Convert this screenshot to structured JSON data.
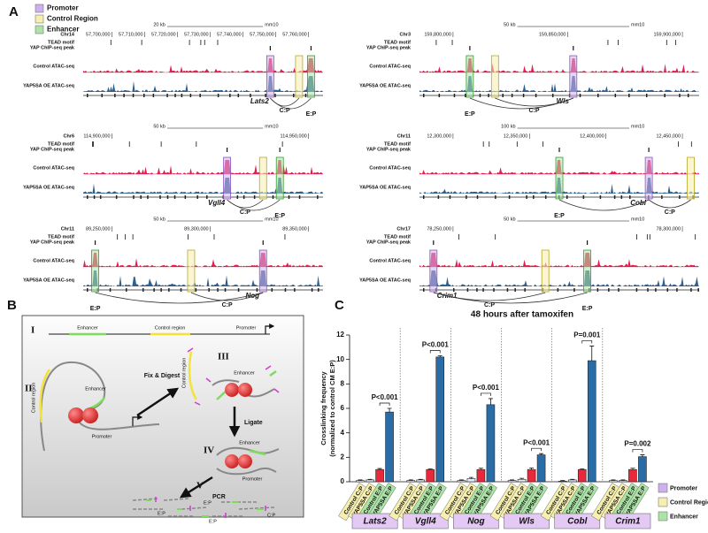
{
  "panel_a": {
    "label": "A",
    "legend": [
      {
        "name": "Promoter",
        "color": "#cfb0ee"
      },
      {
        "name": "Control Region",
        "color": "#f6efb0"
      },
      {
        "name": "Enhancer",
        "color": "#ace3a6"
      }
    ],
    "row_labels": [
      "TEAD motif",
      "YAP ChIP-seq peak",
      "Control ATAC-seq",
      "YAP5SA OE ATAC-seq"
    ],
    "tracks": [
      {
        "chrom": "Chr14",
        "scale": "20 kb",
        "assembly": "mm10",
        "coords": [
          "57,700,000",
          "57,710,000",
          "57,720,000",
          "57,730,000",
          "57,740,000",
          "57,750,000",
          "57,760,000"
        ],
        "gene": "Lats2",
        "loops": [
          "C:P",
          "E:P"
        ]
      },
      {
        "chrom": "Chr3",
        "scale": "50 kb",
        "assembly": "mm10",
        "coords": [
          "159,800,000",
          "159,850,000",
          "159,900,000"
        ],
        "gene": "Wls",
        "loops": [
          "C:P",
          "E:P"
        ]
      },
      {
        "chrom": "Chr6",
        "scale": "50 kb",
        "assembly": "mm10",
        "coords": [
          "114,900,000",
          "114,950,000"
        ],
        "gene": "Vgll4",
        "loops": [
          "C:P",
          "E:P"
        ]
      },
      {
        "chrom": "Chr11",
        "scale": "100 kb",
        "assembly": "mm10",
        "coords": [
          "12,300,000",
          "12,350,000",
          "12,400,000",
          "12,450,000"
        ],
        "gene": "Cobl",
        "loops": [
          "C:P",
          "E:P"
        ]
      },
      {
        "chrom": "Chr11",
        "scale": "50 kb",
        "assembly": "mm10",
        "coords": [
          "89,250,000",
          "89,300,000",
          "89,350,000"
        ],
        "gene": "Nog",
        "loops": [
          "C:P",
          "E:P"
        ]
      },
      {
        "chrom": "Chr17",
        "scale": "50 kb",
        "assembly": "mm10",
        "coords": [
          "78,250,000",
          "78,300,000"
        ],
        "gene": "Crim1",
        "loops": [
          "C:P",
          "E:P"
        ]
      }
    ]
  },
  "panel_b": {
    "label": "B",
    "steps": [
      "I",
      "II",
      "III",
      "IV",
      "V"
    ],
    "actions": [
      "Fix & Digest",
      "Ligate",
      "PCR"
    ],
    "i_labels": [
      "Enhancer",
      "Control region",
      "Promoter"
    ],
    "ii_labels": [
      "Enhancer",
      "Control region",
      "Promoter"
    ],
    "iii_labels": [
      "Enhancer",
      "Control region"
    ],
    "iv_labels": [
      "Enhancer",
      "Promoter"
    ],
    "v_labels": [
      "E:P",
      "E:P",
      "E:P",
      "C:P"
    ]
  },
  "chart_data": {
    "type": "bar",
    "label": "C",
    "title": "48 hours after tamoxifen",
    "y_label": [
      "Crosslinking frequency",
      "(normalized to control CM E:P)"
    ],
    "categories": [
      "Lats2",
      "Vgll4",
      "Nog",
      "Wls",
      "Cobl",
      "Crim1"
    ],
    "category_color": "#e3c9f4",
    "series": [
      {
        "name": "Control C:P",
        "color": "#ffffff",
        "label_color": "#f6efb0",
        "values": [
          0.1,
          0.1,
          0.1,
          0.1,
          0.05,
          0.1
        ],
        "errors": [
          0.05,
          0.05,
          0.05,
          0.05,
          0.05,
          0.05
        ]
      },
      {
        "name": "YAP5SA C:P",
        "color": "#e4edf7",
        "label_color": "#f6efb0",
        "values": [
          0.15,
          0.15,
          0.25,
          0.2,
          0.15,
          0.1
        ],
        "errors": [
          0.05,
          0.05,
          0.1,
          0.08,
          0.05,
          0.05
        ]
      },
      {
        "name": "Control E:P",
        "color": "#e8293b",
        "label_color": "#ace3a6",
        "values": [
          1,
          1,
          1,
          1,
          1,
          1
        ],
        "errors": [
          0.08,
          0.05,
          0.1,
          0.12,
          0.05,
          0.1
        ]
      },
      {
        "name": "YAP5SA E:P",
        "color": "#2a6ca6",
        "label_color": "#ace3a6",
        "values": [
          5.7,
          10.2,
          6.3,
          2.2,
          9.9,
          2.05
        ],
        "errors": [
          0.3,
          0.1,
          0.5,
          0.1,
          1.2,
          0.15
        ]
      }
    ],
    "p_values": [
      "P<0.001",
      "P<0.001",
      "P<0.001",
      "P<0.001",
      "P=0.001",
      "P=0.002"
    ],
    "ylim": [
      0,
      12
    ],
    "yticks": [
      0,
      2,
      4,
      6,
      8,
      10,
      12
    ],
    "region_legend": [
      {
        "name": "Promoter",
        "color": "#cfb0ee"
      },
      {
        "name": "Control Region",
        "color": "#f6efb0"
      },
      {
        "name": "Enhancer",
        "color": "#ace3a6"
      }
    ]
  }
}
